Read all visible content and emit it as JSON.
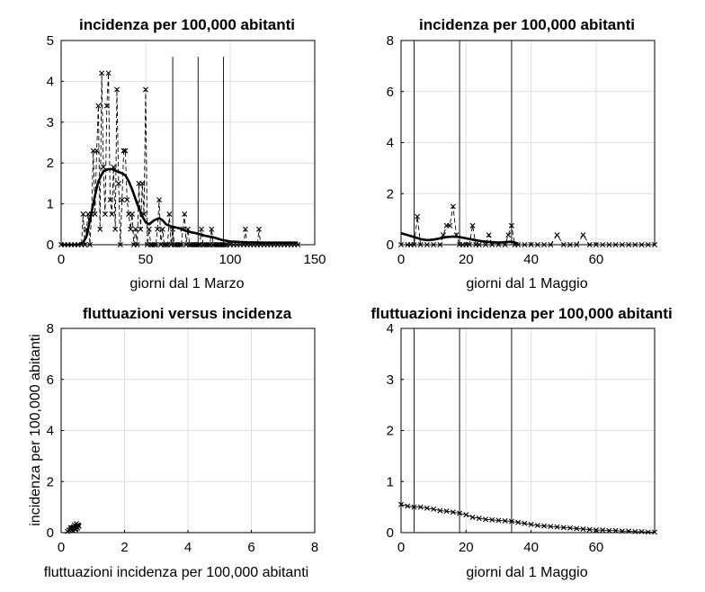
{
  "chart_data": [
    {
      "type": "line",
      "title": "incidenza per 100,000 abitanti",
      "xlabel": "giorni dal 1 Marzo",
      "ylabel": "",
      "xlim": [
        0,
        150
      ],
      "ylim": [
        0,
        5
      ],
      "xticks": [
        0,
        50,
        100,
        150
      ],
      "yticks": [
        0,
        1,
        2,
        3,
        4,
        5
      ],
      "grid": true,
      "vlines": [
        66,
        81,
        96
      ],
      "vline_height": 4.6,
      "series": [
        {
          "style": "dashed-markers",
          "x": [
            0,
            2,
            4,
            6,
            8,
            10,
            12,
            13,
            14,
            15,
            16,
            17,
            18,
            19,
            20,
            21,
            22,
            23,
            24,
            25,
            26,
            27,
            28,
            29,
            30,
            31,
            32,
            33,
            34,
            35,
            36,
            37,
            38,
            39,
            40,
            41,
            42,
            43,
            44,
            45,
            46,
            47,
            48,
            49,
            50,
            51,
            52,
            53,
            54,
            55,
            56,
            57,
            58,
            59,
            60,
            61,
            62,
            63,
            64,
            65,
            66,
            67,
            68,
            69,
            70,
            71,
            72,
            73,
            74,
            75,
            76,
            77,
            78,
            79,
            80,
            81,
            82,
            83,
            84,
            85,
            86,
            87,
            88,
            89,
            90,
            91,
            92,
            93,
            94,
            95,
            96,
            97,
            98,
            100,
            102,
            104,
            106,
            108,
            109,
            110,
            112,
            114,
            116,
            117,
            118,
            120,
            122,
            124,
            126,
            128,
            130,
            132,
            134,
            136,
            138,
            140
          ],
          "y": [
            0,
            0,
            0,
            0,
            0,
            0,
            0,
            0.75,
            0,
            0.38,
            0.75,
            0,
            0.75,
            2.3,
            0.75,
            2.3,
            3.4,
            0.38,
            4.2,
            1.9,
            0.75,
            3.4,
            4.2,
            1.1,
            0.75,
            1.9,
            0.38,
            3.8,
            1.5,
            0,
            1.1,
            2.3,
            2.3,
            1.1,
            0.75,
            0.38,
            0.75,
            0,
            0.38,
            0,
            1.5,
            0.38,
            1.5,
            0.75,
            3.8,
            0,
            0.38,
            0,
            0,
            0,
            0,
            0.38,
            1.1,
            0,
            0.38,
            0,
            0,
            0,
            0.75,
            0,
            0.38,
            0,
            0,
            0,
            0,
            0,
            0.38,
            0.75,
            0,
            0.38,
            0,
            0,
            0,
            0,
            0,
            0,
            0,
            0.38,
            0,
            0,
            0,
            0,
            0,
            0.38,
            0,
            0,
            0,
            0,
            0,
            0,
            0,
            0,
            0,
            0,
            0,
            0,
            0,
            0,
            0.38,
            0,
            0,
            0,
            0,
            0.38,
            0,
            0,
            0,
            0,
            0,
            0,
            0,
            0,
            0,
            0,
            0,
            0
          ]
        },
        {
          "style": "smooth-thick",
          "x": [
            0,
            5,
            10,
            13,
            15,
            17,
            20,
            22,
            25,
            28,
            30,
            33,
            36,
            38,
            40,
            42,
            45,
            48,
            50,
            52,
            55,
            58,
            60,
            62,
            65,
            68,
            70,
            75,
            80,
            85,
            90,
            95,
            100,
            110,
            120,
            130,
            140
          ],
          "y": [
            0,
            0,
            0,
            0.05,
            0.2,
            0.6,
            1.2,
            1.55,
            1.8,
            1.85,
            1.85,
            1.8,
            1.75,
            1.7,
            1.55,
            1.35,
            1.0,
            0.7,
            0.55,
            0.5,
            0.6,
            0.65,
            0.6,
            0.5,
            0.45,
            0.42,
            0.4,
            0.32,
            0.28,
            0.22,
            0.18,
            0.12,
            0.08,
            0.06,
            0.05,
            0.05,
            0.05
          ]
        }
      ]
    },
    {
      "type": "line",
      "title": "incidenza per 100,000 abitanti",
      "xlabel": "giorni dal 1 Maggio",
      "ylabel": "",
      "xlim": [
        0,
        78
      ],
      "ylim": [
        0,
        8
      ],
      "xticks": [
        0,
        20,
        40,
        60
      ],
      "yticks": [
        0,
        2,
        4,
        6,
        8
      ],
      "grid": true,
      "vlines": [
        4,
        18,
        34
      ],
      "vline_height": 8,
      "series": [
        {
          "style": "dashed-markers",
          "x": [
            0,
            2,
            3,
            4,
            5,
            6,
            8,
            10,
            12,
            13,
            14,
            15,
            16,
            17,
            18,
            19,
            20,
            21,
            22,
            23,
            24,
            26,
            27,
            28,
            30,
            32,
            33,
            34,
            35,
            36,
            38,
            40,
            42,
            44,
            46,
            48,
            50,
            52,
            54,
            56,
            58,
            60,
            62,
            64,
            66,
            68,
            70,
            72,
            74,
            76,
            78
          ],
          "y": [
            0,
            0,
            0,
            0,
            1.1,
            0,
            0,
            0,
            0,
            0.38,
            0.75,
            0.75,
            1.5,
            0.38,
            0,
            0,
            0,
            0,
            0.75,
            0,
            0,
            0,
            0.38,
            0,
            0,
            0,
            0.38,
            0.75,
            0,
            0,
            0,
            0,
            0,
            0,
            0,
            0.38,
            0,
            0,
            0,
            0.38,
            0,
            0,
            0,
            0,
            0,
            0,
            0,
            0,
            0,
            0,
            0
          ]
        },
        {
          "style": "smooth-thick",
          "x": [
            0,
            2,
            4,
            6,
            8,
            10,
            12,
            14,
            16,
            18,
            20,
            22,
            24,
            26,
            28,
            30,
            32,
            34,
            36
          ],
          "y": [
            0.45,
            0.38,
            0.3,
            0.22,
            0.18,
            0.2,
            0.25,
            0.3,
            0.32,
            0.3,
            0.25,
            0.2,
            0.15,
            0.12,
            0.1,
            0.08,
            0.1,
            0.12,
            0.05
          ]
        }
      ]
    },
    {
      "type": "scatter",
      "title": "fluttuazioni versus incidenza",
      "xlabel": "fluttuazioni incidenza per 100,000 abitanti",
      "ylabel": "incidenza per 100,000 abitanti",
      "xlim": [
        0,
        8
      ],
      "ylim": [
        0,
        8
      ],
      "xticks": [
        0,
        2,
        4,
        6,
        8
      ],
      "yticks": [
        0,
        2,
        4,
        6,
        8
      ],
      "grid": true,
      "vlines": [],
      "series": [
        {
          "style": "markers",
          "x": [
            0.2,
            0.25,
            0.3,
            0.33,
            0.35,
            0.38,
            0.4,
            0.42,
            0.45,
            0.47,
            0.5,
            0.52,
            0.55,
            0.38,
            0.42,
            0.48,
            0.3,
            0.45,
            0.52,
            0.56
          ],
          "y": [
            0.05,
            0.1,
            0.12,
            0.15,
            0.18,
            0.2,
            0.22,
            0.18,
            0.25,
            0.15,
            0.22,
            0.3,
            0.28,
            0.08,
            0.3,
            0.35,
            0.2,
            0.12,
            0.18,
            0.25
          ]
        }
      ]
    },
    {
      "type": "line",
      "title": "fluttuazioni incidenza per 100,000 abitanti",
      "xlabel": "giorni dal 1 Maggio",
      "ylabel": "",
      "xlim": [
        0,
        78
      ],
      "ylim": [
        0,
        4
      ],
      "xticks": [
        0,
        20,
        40,
        60
      ],
      "yticks": [
        0,
        1,
        2,
        3,
        4
      ],
      "grid": true,
      "vlines": [
        4,
        18,
        34
      ],
      "vline_height": 4,
      "series": [
        {
          "style": "solid-markers",
          "x": [
            0,
            2,
            4,
            6,
            8,
            10,
            12,
            14,
            16,
            18,
            20,
            22,
            24,
            26,
            28,
            30,
            32,
            34,
            36,
            38,
            40,
            42,
            44,
            46,
            48,
            50,
            52,
            54,
            56,
            58,
            60,
            62,
            64,
            66,
            68,
            70,
            72,
            74,
            76,
            78
          ],
          "y": [
            0.55,
            0.52,
            0.5,
            0.5,
            0.48,
            0.46,
            0.43,
            0.42,
            0.4,
            0.38,
            0.35,
            0.3,
            0.28,
            0.26,
            0.25,
            0.24,
            0.23,
            0.22,
            0.2,
            0.18,
            0.16,
            0.14,
            0.13,
            0.12,
            0.11,
            0.1,
            0.09,
            0.08,
            0.07,
            0.06,
            0.05,
            0.05,
            0.04,
            0.04,
            0.03,
            0.03,
            0.02,
            0.02,
            0.01,
            0.01
          ]
        }
      ]
    }
  ]
}
